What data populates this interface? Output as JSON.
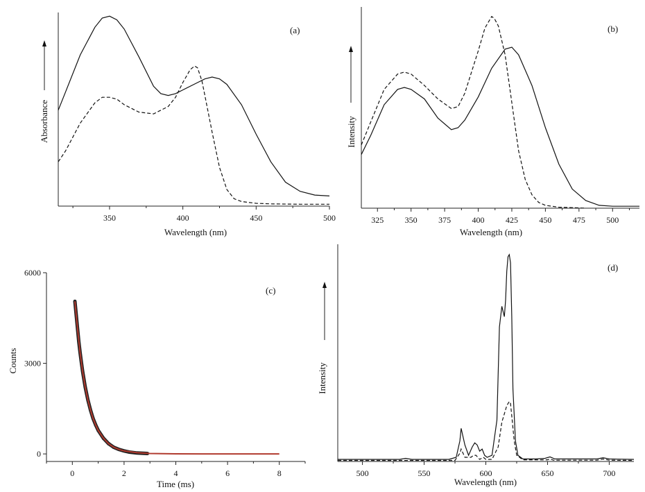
{
  "chart_data": [
    {
      "id": "a",
      "type": "line",
      "panel_label": "(a)",
      "xlabel": "Wavelength (nm)",
      "ylabel": "Absorbance",
      "xlim": [
        315,
        500
      ],
      "ylim": [
        0,
        1.05
      ],
      "x_ticks": [
        350,
        400,
        450,
        500
      ],
      "y_ticks": [],
      "series": [
        {
          "name": "solid",
          "style": "solid",
          "x": [
            315,
            320,
            330,
            340,
            345,
            350,
            355,
            360,
            370,
            380,
            385,
            390,
            395,
            400,
            410,
            415,
            420,
            425,
            430,
            440,
            450,
            460,
            470,
            480,
            490,
            500
          ],
          "y": [
            0.52,
            0.62,
            0.82,
            0.97,
            1.02,
            1.03,
            1.01,
            0.96,
            0.81,
            0.65,
            0.61,
            0.6,
            0.61,
            0.63,
            0.67,
            0.69,
            0.7,
            0.69,
            0.66,
            0.55,
            0.39,
            0.24,
            0.13,
            0.08,
            0.06,
            0.055
          ]
        },
        {
          "name": "dashed",
          "style": "dashed",
          "x": [
            315,
            320,
            330,
            340,
            345,
            350,
            355,
            360,
            370,
            380,
            390,
            395,
            400,
            405,
            408,
            410,
            413,
            415,
            420,
            425,
            430,
            435,
            440,
            450,
            460,
            480,
            500
          ],
          "y": [
            0.24,
            0.3,
            0.45,
            0.56,
            0.59,
            0.59,
            0.58,
            0.55,
            0.51,
            0.5,
            0.54,
            0.59,
            0.67,
            0.74,
            0.76,
            0.75,
            0.68,
            0.6,
            0.4,
            0.21,
            0.09,
            0.04,
            0.025,
            0.015,
            0.012,
            0.01,
            0.01
          ]
        }
      ]
    },
    {
      "id": "b",
      "type": "line",
      "panel_label": "(b)",
      "xlabel": "Wavelength (nm)",
      "ylabel": "Intensity",
      "xlim": [
        313,
        520
      ],
      "ylim": [
        0,
        1.05
      ],
      "x_ticks": [
        325,
        350,
        375,
        400,
        425,
        450,
        475,
        500
      ],
      "y_ticks": [],
      "series": [
        {
          "name": "solid",
          "style": "solid",
          "x": [
            313,
            320,
            330,
            340,
            345,
            350,
            360,
            370,
            380,
            385,
            390,
            400,
            410,
            420,
            425,
            430,
            440,
            450,
            460,
            470,
            480,
            490,
            500,
            510,
            520
          ],
          "y": [
            0.28,
            0.38,
            0.54,
            0.62,
            0.63,
            0.62,
            0.57,
            0.47,
            0.41,
            0.42,
            0.46,
            0.58,
            0.73,
            0.83,
            0.84,
            0.8,
            0.64,
            0.42,
            0.23,
            0.1,
            0.04,
            0.015,
            0.01,
            0.01,
            0.01
          ]
        },
        {
          "name": "dashed",
          "style": "dashed",
          "x": [
            313,
            320,
            330,
            340,
            345,
            350,
            360,
            370,
            380,
            385,
            390,
            400,
            405,
            410,
            412,
            415,
            420,
            425,
            430,
            435,
            440,
            445,
            450,
            460,
            470,
            480
          ],
          "y": [
            0.33,
            0.45,
            0.62,
            0.7,
            0.71,
            0.7,
            0.64,
            0.57,
            0.52,
            0.53,
            0.6,
            0.82,
            0.94,
            1.0,
            0.99,
            0.95,
            0.8,
            0.55,
            0.3,
            0.15,
            0.07,
            0.03,
            0.015,
            0.005,
            0.003,
            0.0
          ]
        }
      ]
    },
    {
      "id": "c",
      "type": "scatter",
      "panel_label": "(c)",
      "xlabel": "Time (ms)",
      "ylabel": "Counts",
      "xlim": [
        -1,
        9
      ],
      "ylim": [
        -250,
        6000
      ],
      "x_ticks": [
        0,
        2,
        4,
        6,
        8
      ],
      "y_ticks": [
        0,
        3000,
        6000
      ],
      "series": [
        {
          "name": "data",
          "style": "points",
          "color": "#222222",
          "x": [
            0.1,
            0.15,
            0.2,
            0.25,
            0.3,
            0.35,
            0.4,
            0.5,
            0.6,
            0.7,
            0.8,
            0.9,
            1.0,
            1.2,
            1.4,
            1.6,
            1.8,
            2.0,
            2.2,
            2.5,
            2.9
          ],
          "y": [
            5050,
            4600,
            4150,
            3720,
            3350,
            3020,
            2720,
            2210,
            1790,
            1460,
            1180,
            960,
            780,
            520,
            340,
            220,
            150,
            100,
            60,
            30,
            15
          ]
        },
        {
          "name": "fit",
          "style": "solid",
          "color": "#b03a2e",
          "x": [
            0.1,
            0.2,
            0.3,
            0.4,
            0.5,
            0.6,
            0.7,
            0.8,
            0.9,
            1.0,
            1.2,
            1.4,
            1.6,
            1.8,
            2.0,
            2.5,
            3.0,
            4.0,
            5.0,
            6.0,
            7.0,
            8.0
          ],
          "y": [
            5050,
            4150,
            3350,
            2720,
            2210,
            1790,
            1460,
            1180,
            960,
            780,
            520,
            340,
            220,
            150,
            100,
            40,
            15,
            3,
            0,
            0,
            0,
            0
          ]
        }
      ]
    },
    {
      "id": "d",
      "type": "line",
      "panel_label": "(d)",
      "xlabel": "Wavelength (nm)",
      "ylabel": "Intensity",
      "xlim": [
        480,
        720
      ],
      "ylim": [
        0,
        1.05
      ],
      "x_ticks": [
        500,
        550,
        600,
        650,
        700
      ],
      "y_ticks": [],
      "series": [
        {
          "name": "solid",
          "style": "solid",
          "x": [
            480,
            530,
            535,
            540,
            570,
            576,
            579,
            580,
            583,
            586,
            589,
            591,
            593,
            595,
            597,
            599,
            601,
            605,
            609,
            611,
            613,
            615,
            616,
            617,
            618,
            619,
            620,
            621,
            622,
            624,
            626,
            630,
            640,
            648,
            652,
            656,
            690,
            695,
            700,
            720
          ],
          "y": [
            0.01,
            0.01,
            0.015,
            0.01,
            0.01,
            0.02,
            0.1,
            0.16,
            0.08,
            0.03,
            0.07,
            0.09,
            0.08,
            0.05,
            0.06,
            0.03,
            0.02,
            0.03,
            0.2,
            0.65,
            0.75,
            0.7,
            0.78,
            0.92,
            0.99,
            1.0,
            0.96,
            0.7,
            0.35,
            0.1,
            0.03,
            0.012,
            0.012,
            0.015,
            0.022,
            0.012,
            0.012,
            0.018,
            0.012,
            0.01
          ]
        },
        {
          "name": "dashed",
          "style": "dashed",
          "x": [
            480,
            575,
            579,
            580,
            583,
            588,
            590,
            592,
            595,
            598,
            600,
            605,
            610,
            613,
            615,
            617,
            619,
            620,
            621,
            623,
            625,
            630,
            650,
            652,
            655,
            690,
            695,
            700,
            720
          ],
          "y": [
            0.005,
            0.005,
            0.04,
            0.06,
            0.02,
            0.02,
            0.03,
            0.03,
            0.01,
            0.02,
            0.01,
            0.01,
            0.07,
            0.19,
            0.23,
            0.27,
            0.29,
            0.28,
            0.22,
            0.1,
            0.03,
            0.008,
            0.008,
            0.012,
            0.006,
            0.006,
            0.012,
            0.006,
            0.005
          ]
        }
      ]
    }
  ]
}
